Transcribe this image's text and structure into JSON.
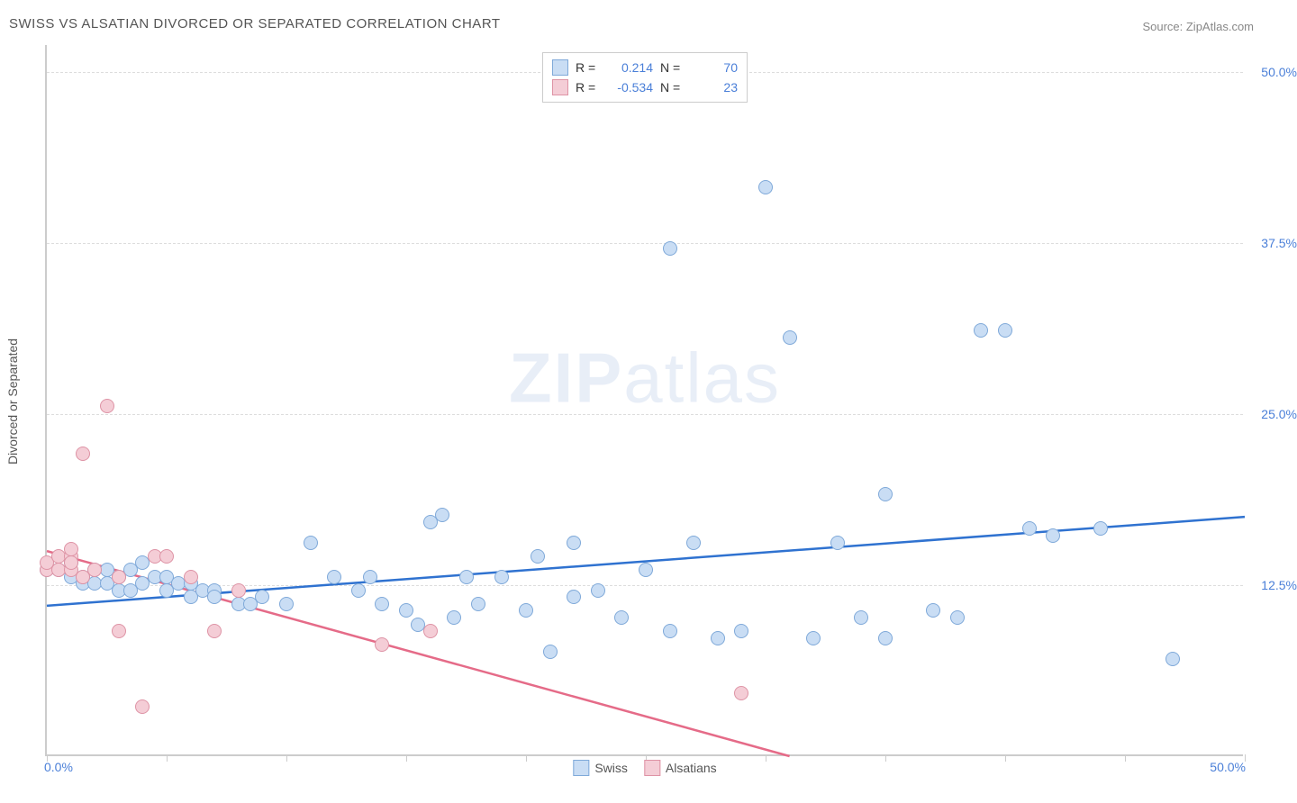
{
  "title": "SWISS VS ALSATIAN DIVORCED OR SEPARATED CORRELATION CHART",
  "source": "Source: ZipAtlas.com",
  "watermark_bold": "ZIP",
  "watermark_rest": "atlas",
  "ylabel": "Divorced or Separated",
  "chart": {
    "type": "scatter",
    "xlim": [
      0,
      50
    ],
    "ylim": [
      0,
      52
    ],
    "ytick_values": [
      12.5,
      25.0,
      37.5,
      50.0
    ],
    "ytick_labels": [
      "12.5%",
      "25.0%",
      "37.5%",
      "50.0%"
    ],
    "xtick_values": [
      0,
      5,
      10,
      15,
      20,
      25,
      30,
      35,
      40,
      45,
      50
    ],
    "xaxis_left_label": "0.0%",
    "xaxis_right_label": "50.0%",
    "grid_color": "#dddddd",
    "axis_color": "#cccccc",
    "background_color": "#ffffff",
    "marker_radius": 8
  },
  "series": {
    "swiss": {
      "label": "Swiss",
      "fill": "#c9ddf4",
      "stroke": "#7fa9d9",
      "line_color": "#2f72d0",
      "R": "0.214",
      "N": "70",
      "regression": {
        "x1": 0,
        "y1": 11.0,
        "x2": 50,
        "y2": 17.5
      },
      "points": [
        [
          0,
          13.5
        ],
        [
          0.5,
          13.5
        ],
        [
          1,
          14
        ],
        [
          1,
          13
        ],
        [
          1.5,
          12.5
        ],
        [
          1.5,
          13
        ],
        [
          2,
          13.5
        ],
        [
          2,
          12.5
        ],
        [
          2.5,
          12.5
        ],
        [
          2.5,
          13.5
        ],
        [
          3,
          12
        ],
        [
          3,
          13
        ],
        [
          3.5,
          13.5
        ],
        [
          3.5,
          12
        ],
        [
          4,
          14
        ],
        [
          4,
          12.5
        ],
        [
          4.5,
          13
        ],
        [
          5,
          12
        ],
        [
          5,
          13
        ],
        [
          5.5,
          12.5
        ],
        [
          6,
          11.5
        ],
        [
          6,
          12.5
        ],
        [
          6.5,
          12
        ],
        [
          7,
          12
        ],
        [
          7,
          11.5
        ],
        [
          8,
          11
        ],
        [
          8.5,
          11
        ],
        [
          9,
          11.5
        ],
        [
          10,
          11
        ],
        [
          11,
          15.5
        ],
        [
          12,
          13
        ],
        [
          13,
          12
        ],
        [
          13.5,
          13
        ],
        [
          14,
          11
        ],
        [
          15,
          10.5
        ],
        [
          15.5,
          9.5
        ],
        [
          16,
          17
        ],
        [
          16.5,
          17.5
        ],
        [
          17,
          10
        ],
        [
          17.5,
          13
        ],
        [
          18,
          11
        ],
        [
          19,
          13
        ],
        [
          20,
          10.5
        ],
        [
          20.5,
          14.5
        ],
        [
          21,
          7.5
        ],
        [
          22,
          15.5
        ],
        [
          22,
          11.5
        ],
        [
          23,
          12
        ],
        [
          24,
          10
        ],
        [
          25,
          13.5
        ],
        [
          26,
          9
        ],
        [
          26,
          37
        ],
        [
          27,
          15.5
        ],
        [
          28,
          8.5
        ],
        [
          29,
          9
        ],
        [
          30,
          41.5
        ],
        [
          31,
          30.5
        ],
        [
          32,
          8.5
        ],
        [
          33,
          15.5
        ],
        [
          34,
          10
        ],
        [
          35,
          19
        ],
        [
          35,
          8.5
        ],
        [
          37,
          10.5
        ],
        [
          38,
          10
        ],
        [
          39,
          31
        ],
        [
          40,
          31
        ],
        [
          41,
          16.5
        ],
        [
          42,
          16
        ],
        [
          44,
          16.5
        ],
        [
          47,
          7
        ]
      ]
    },
    "alsatians": {
      "label": "Alsatians",
      "fill": "#f4cdd6",
      "stroke": "#de93a5",
      "line_color": "#e56b88",
      "R": "-0.534",
      "N": "23",
      "regression": {
        "x1": 0,
        "y1": 15.0,
        "x2": 31,
        "y2": 0
      },
      "points": [
        [
          0,
          13.5
        ],
        [
          0,
          14
        ],
        [
          0.5,
          13.5
        ],
        [
          0.5,
          14.5
        ],
        [
          1,
          14.5
        ],
        [
          1,
          13.5
        ],
        [
          1,
          15
        ],
        [
          1,
          14
        ],
        [
          1.5,
          22
        ],
        [
          1.5,
          13
        ],
        [
          2,
          13.5
        ],
        [
          2.5,
          25.5
        ],
        [
          3,
          9
        ],
        [
          3,
          13
        ],
        [
          4,
          3.5
        ],
        [
          4.5,
          14.5
        ],
        [
          5,
          14.5
        ],
        [
          6,
          13
        ],
        [
          7,
          9
        ],
        [
          8,
          12
        ],
        [
          14,
          8
        ],
        [
          16,
          9
        ],
        [
          29,
          4.5
        ]
      ]
    }
  },
  "legend_top": {
    "R_label": "R =",
    "N_label": "N ="
  }
}
